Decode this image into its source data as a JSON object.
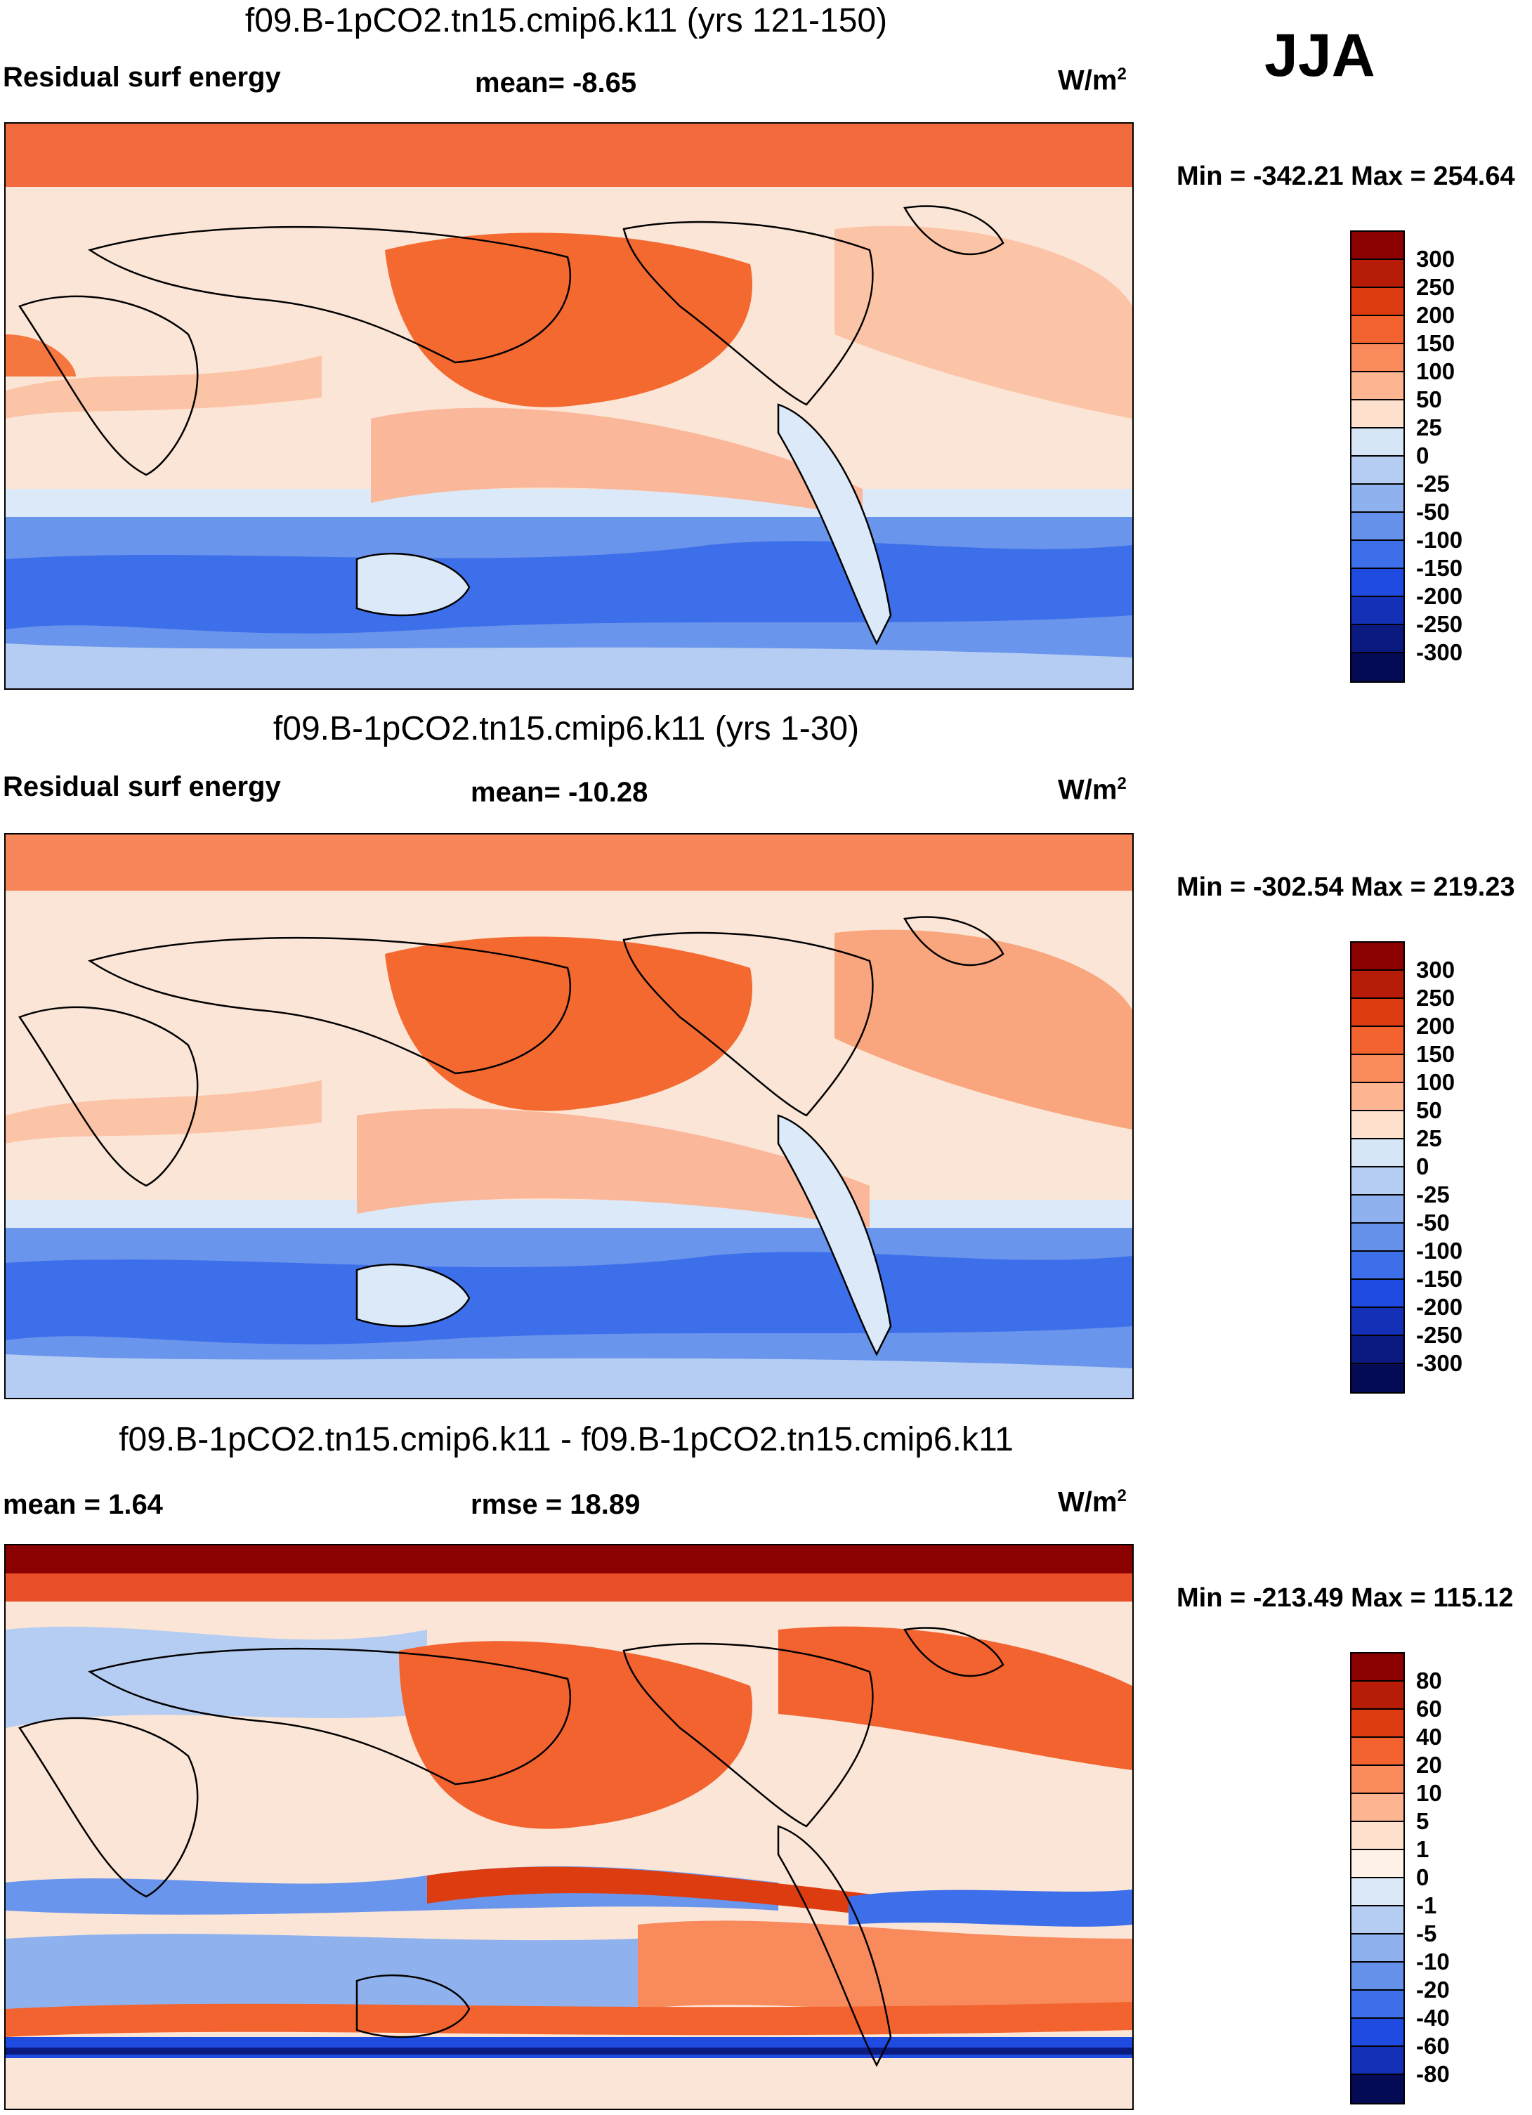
{
  "season": "JJA",
  "panels": [
    {
      "title": "f09.B-1pCO2.tn15.cmip6.k11 (yrs 121-150)",
      "left_label": "Residual surf energy",
      "center_label": "mean=  -8.65",
      "units": "W/m",
      "units_exp": "2",
      "minmax": "Min = -342.21 Max = 254.64",
      "colorbar": {
        "levels": [
          "300",
          "250",
          "200",
          "150",
          "100",
          "50",
          "25",
          "0",
          "-25",
          "-50",
          "-100",
          "-150",
          "-200",
          "-250",
          "-300"
        ],
        "colors": [
          "#8b0000",
          "#b71c08",
          "#dd3c10",
          "#f26330",
          "#f98a5c",
          "#fcb491",
          "#fde1cc",
          "#d6e6f7",
          "#b5cdf2",
          "#8fb2ee",
          "#6691eb",
          "#3e6fea",
          "#1f4be0",
          "#1430b6",
          "#0b1a7e",
          "#050a55"
        ]
      }
    },
    {
      "title": "f09.B-1pCO2.tn15.cmip6.k11 (yrs 1-30)",
      "left_label": "Residual surf energy",
      "center_label": "mean= -10.28",
      "units": "W/m",
      "units_exp": "2",
      "minmax": "Min = -302.54 Max = 219.23",
      "colorbar": {
        "levels": [
          "300",
          "250",
          "200",
          "150",
          "100",
          "50",
          "25",
          "0",
          "-25",
          "-50",
          "-100",
          "-150",
          "-200",
          "-250",
          "-300"
        ],
        "colors": [
          "#8b0000",
          "#b71c08",
          "#dd3c10",
          "#f26330",
          "#f98a5c",
          "#fcb491",
          "#fde1cc",
          "#d6e6f7",
          "#b5cdf2",
          "#8fb2ee",
          "#6691eb",
          "#3e6fea",
          "#1f4be0",
          "#1430b6",
          "#0b1a7e",
          "#050a55"
        ]
      }
    },
    {
      "title": "f09.B-1pCO2.tn15.cmip6.k11 - f09.B-1pCO2.tn15.cmip6.k11",
      "left_label": "mean =   1.64",
      "center_label": "rmse =  18.89",
      "units": "W/m",
      "units_exp": "2",
      "minmax": "Min = -213.49 Max = 115.12",
      "colorbar": {
        "levels": [
          "80",
          "60",
          "40",
          "20",
          "10",
          "5",
          "1",
          "0",
          "-1",
          "-5",
          "-10",
          "-20",
          "-40",
          "-60",
          "-80"
        ],
        "colors": [
          "#8b0000",
          "#b71c08",
          "#dd3c10",
          "#f26330",
          "#f98a5c",
          "#fcb491",
          "#fde1cc",
          "#fdf1e8",
          "#dbe8f8",
          "#b5cdf2",
          "#8fb2ee",
          "#6691eb",
          "#3e6fea",
          "#1f4be0",
          "#1430b6",
          "#050a55"
        ]
      }
    }
  ],
  "chart_data": [
    {
      "type": "heatmap",
      "title": "f09.B-1pCO2.tn15.cmip6.k11 (yrs 121-150)",
      "variable": "Residual surf energy",
      "mean": -8.65,
      "units": "W/m2",
      "min": -342.21,
      "max": 254.64,
      "contour_levels": [
        -300,
        -250,
        -200,
        -150,
        -100,
        -50,
        -25,
        0,
        25,
        50,
        100,
        150,
        200,
        250,
        300
      ]
    },
    {
      "type": "heatmap",
      "title": "f09.B-1pCO2.tn15.cmip6.k11 (yrs 1-30)",
      "variable": "Residual surf energy",
      "mean": -10.28,
      "units": "W/m2",
      "min": -302.54,
      "max": 219.23,
      "contour_levels": [
        -300,
        -250,
        -200,
        -150,
        -100,
        -50,
        -25,
        0,
        25,
        50,
        100,
        150,
        200,
        250,
        300
      ]
    },
    {
      "type": "heatmap",
      "title": "f09.B-1pCO2.tn15.cmip6.k11 - f09.B-1pCO2.tn15.cmip6.k11",
      "mean": 1.64,
      "rmse": 18.89,
      "units": "W/m2",
      "min": -213.49,
      "max": 115.12,
      "contour_levels": [
        -80,
        -60,
        -40,
        -20,
        -10,
        -5,
        -1,
        0,
        1,
        5,
        10,
        20,
        40,
        60,
        80
      ]
    }
  ]
}
